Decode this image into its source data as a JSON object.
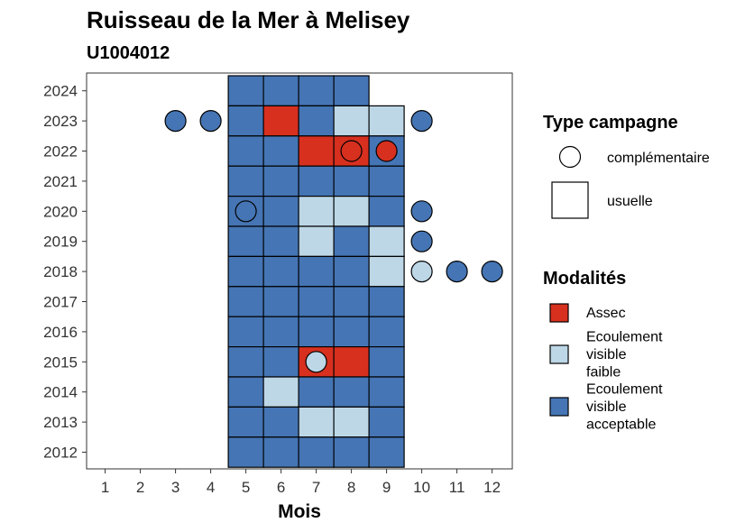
{
  "chart_data": {
    "type": "heatmap",
    "title": "Ruisseau de la Mer à Melisey",
    "subtitle": "U1004012",
    "xlabel": "Mois",
    "ylabel": "",
    "x_ticks": [
      "1",
      "2",
      "3",
      "4",
      "5",
      "6",
      "7",
      "8",
      "9",
      "10",
      "11",
      "12"
    ],
    "y_ticks": [
      "2012",
      "2013",
      "2014",
      "2015",
      "2016",
      "2017",
      "2018",
      "2019",
      "2020",
      "2021",
      "2022",
      "2023",
      "2024"
    ],
    "colors": {
      "Assec": "#d7301f",
      "Ecoulement visible faible": "#bdd7e7",
      "Ecoulement visible acceptable": "#4575b4"
    },
    "legend_type": {
      "title": "Type campagne",
      "items": [
        {
          "label": "complémentaire",
          "shape": "circle"
        },
        {
          "label": "usuelle",
          "shape": "square"
        }
      ]
    },
    "legend_modalites": {
      "title": "Modalités",
      "items": [
        {
          "key": "Assec",
          "lines": [
            "Assec"
          ]
        },
        {
          "key": "Ecoulement visible faible",
          "lines": [
            "Ecoulement",
            "visible",
            "faible"
          ]
        },
        {
          "key": "Ecoulement visible acceptable",
          "lines": [
            "Ecoulement",
            "visible",
            "acceptable"
          ]
        }
      ]
    },
    "usuelle": [
      {
        "year": 2024,
        "months": [
          "Ecoulement visible acceptable",
          "Ecoulement visible acceptable",
          "Ecoulement visible acceptable",
          "Ecoulement visible acceptable",
          null
        ],
        "start": 5
      },
      {
        "year": 2023,
        "months": [
          "Ecoulement visible acceptable",
          "Assec",
          "Ecoulement visible acceptable",
          "Ecoulement visible faible",
          "Ecoulement visible faible"
        ],
        "start": 5
      },
      {
        "year": 2022,
        "months": [
          "Ecoulement visible acceptable",
          "Ecoulement visible acceptable",
          "Assec",
          "Assec",
          "Ecoulement visible acceptable"
        ],
        "start": 5
      },
      {
        "year": 2021,
        "months": [
          "Ecoulement visible acceptable",
          "Ecoulement visible acceptable",
          "Ecoulement visible acceptable",
          "Ecoulement visible acceptable",
          "Ecoulement visible acceptable"
        ],
        "start": 5
      },
      {
        "year": 2020,
        "months": [
          "Ecoulement visible acceptable",
          "Ecoulement visible acceptable",
          "Ecoulement visible faible",
          "Ecoulement visible faible",
          "Ecoulement visible acceptable"
        ],
        "start": 5
      },
      {
        "year": 2019,
        "months": [
          "Ecoulement visible acceptable",
          "Ecoulement visible acceptable",
          "Ecoulement visible faible",
          "Ecoulement visible acceptable",
          "Ecoulement visible faible"
        ],
        "start": 5
      },
      {
        "year": 2018,
        "months": [
          "Ecoulement visible acceptable",
          "Ecoulement visible acceptable",
          "Ecoulement visible acceptable",
          "Ecoulement visible acceptable",
          "Ecoulement visible faible"
        ],
        "start": 5
      },
      {
        "year": 2017,
        "months": [
          "Ecoulement visible acceptable",
          "Ecoulement visible acceptable",
          "Ecoulement visible acceptable",
          "Ecoulement visible acceptable",
          "Ecoulement visible acceptable"
        ],
        "start": 5
      },
      {
        "year": 2016,
        "months": [
          "Ecoulement visible acceptable",
          "Ecoulement visible acceptable",
          "Ecoulement visible acceptable",
          "Ecoulement visible acceptable",
          "Ecoulement visible acceptable"
        ],
        "start": 5
      },
      {
        "year": 2015,
        "months": [
          "Ecoulement visible acceptable",
          "Ecoulement visible acceptable",
          "Assec",
          "Assec",
          "Ecoulement visible acceptable"
        ],
        "start": 5
      },
      {
        "year": 2014,
        "months": [
          "Ecoulement visible acceptable",
          "Ecoulement visible faible",
          "Ecoulement visible acceptable",
          "Ecoulement visible acceptable",
          "Ecoulement visible acceptable"
        ],
        "start": 5
      },
      {
        "year": 2013,
        "months": [
          "Ecoulement visible acceptable",
          "Ecoulement visible acceptable",
          "Ecoulement visible faible",
          "Ecoulement visible faible",
          "Ecoulement visible acceptable"
        ],
        "start": 5
      },
      {
        "year": 2012,
        "months": [
          "Ecoulement visible acceptable",
          "Ecoulement visible acceptable",
          "Ecoulement visible acceptable",
          "Ecoulement visible acceptable",
          "Ecoulement visible acceptable"
        ],
        "start": 5
      }
    ],
    "complementaire": [
      {
        "year": 2023,
        "month": 3,
        "modalite": "Ecoulement visible acceptable"
      },
      {
        "year": 2023,
        "month": 4,
        "modalite": "Ecoulement visible acceptable"
      },
      {
        "year": 2023,
        "month": 10,
        "modalite": "Ecoulement visible acceptable"
      },
      {
        "year": 2022,
        "month": 8,
        "modalite": "Assec"
      },
      {
        "year": 2022,
        "month": 9,
        "modalite": "Assec"
      },
      {
        "year": 2020,
        "month": 5,
        "modalite": "Ecoulement visible acceptable"
      },
      {
        "year": 2020,
        "month": 10,
        "modalite": "Ecoulement visible acceptable"
      },
      {
        "year": 2019,
        "month": 10,
        "modalite": "Ecoulement visible acceptable"
      },
      {
        "year": 2018,
        "month": 10,
        "modalite": "Ecoulement visible faible"
      },
      {
        "year": 2018,
        "month": 11,
        "modalite": "Ecoulement visible acceptable"
      },
      {
        "year": 2018,
        "month": 12,
        "modalite": "Ecoulement visible acceptable"
      },
      {
        "year": 2015,
        "month": 7,
        "modalite": "Ecoulement visible faible"
      }
    ]
  }
}
